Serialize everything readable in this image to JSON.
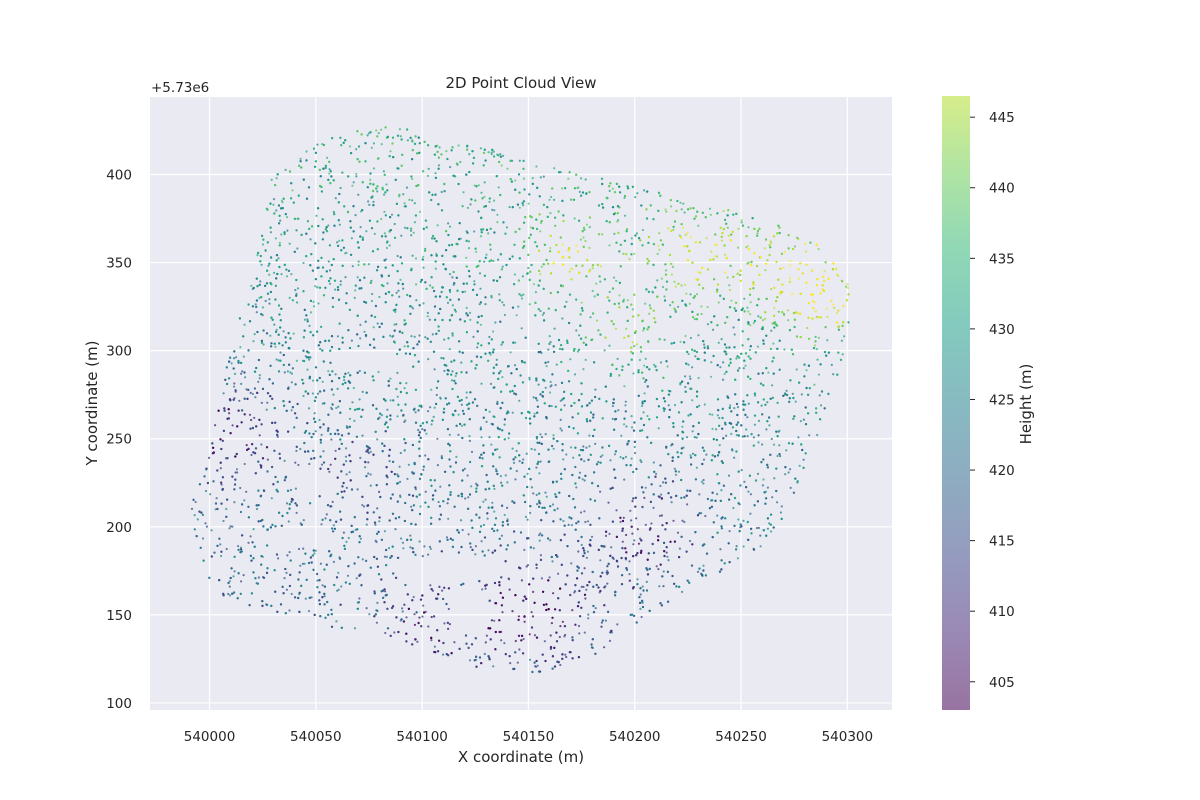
{
  "chart_data": {
    "type": "scatter",
    "title": "2D Point Cloud View",
    "xlabel": "X coordinate (m)",
    "ylabel": "Y coordinate (m)",
    "y_offset_label": "+5.73e6",
    "xlim": [
      539972,
      540321
    ],
    "ylim": [
      96,
      444
    ],
    "xticks": [
      "540000",
      "540050",
      "540100",
      "540150",
      "540200",
      "540250",
      "540300"
    ],
    "xtick_values": [
      540000,
      540050,
      540100,
      540150,
      540200,
      540250,
      540300
    ],
    "yticks": [
      "100",
      "150",
      "200",
      "250",
      "300",
      "350",
      "400"
    ],
    "ytick_values": [
      100,
      150,
      200,
      250,
      300,
      350,
      400
    ],
    "grid": true,
    "colorbar": {
      "label": "Height (m)",
      "range": [
        403,
        446.5
      ],
      "ticks": [
        "405",
        "410",
        "415",
        "420",
        "425",
        "430",
        "435",
        "440",
        "445"
      ],
      "tick_values": [
        405,
        410,
        415,
        420,
        425,
        430,
        435,
        440,
        445
      ],
      "colormap": "viridis"
    },
    "point_cloud": {
      "outline": [
        [
          540030,
          405
        ],
        [
          540055,
          420
        ],
        [
          540080,
          428
        ],
        [
          540100,
          425
        ],
        [
          540160,
          405
        ],
        [
          540260,
          375
        ],
        [
          540285,
          362
        ],
        [
          540300,
          340
        ],
        [
          540302,
          320
        ],
        [
          540295,
          280
        ],
        [
          540272,
          210
        ],
        [
          540262,
          190
        ],
        [
          540242,
          175
        ],
        [
          540205,
          150
        ],
        [
          540190,
          130
        ],
        [
          540150,
          115
        ],
        [
          540130,
          118
        ],
        [
          540090,
          135
        ],
        [
          540050,
          145
        ],
        [
          540020,
          155
        ],
        [
          540005,
          160
        ],
        [
          539995,
          180
        ],
        [
          539990,
          210
        ],
        [
          540000,
          245
        ],
        [
          540008,
          290
        ],
        [
          540016,
          330
        ],
        [
          540025,
          370
        ]
      ],
      "high_zones": [
        {
          "x": 540230,
          "y": 355,
          "height": 444
        },
        {
          "x": 540275,
          "y": 345,
          "height": 443
        },
        {
          "x": 540170,
          "y": 355,
          "height": 440
        },
        {
          "x": 540195,
          "y": 310,
          "height": 437
        },
        {
          "x": 540290,
          "y": 325,
          "height": 440
        }
      ],
      "low_zones": [
        {
          "x": 540010,
          "y": 255,
          "height": 405
        },
        {
          "x": 540155,
          "y": 155,
          "height": 404
        },
        {
          "x": 540205,
          "y": 200,
          "height": 406
        },
        {
          "x": 540070,
          "y": 230,
          "height": 412
        },
        {
          "x": 540110,
          "y": 145,
          "height": 410
        }
      ]
    }
  }
}
